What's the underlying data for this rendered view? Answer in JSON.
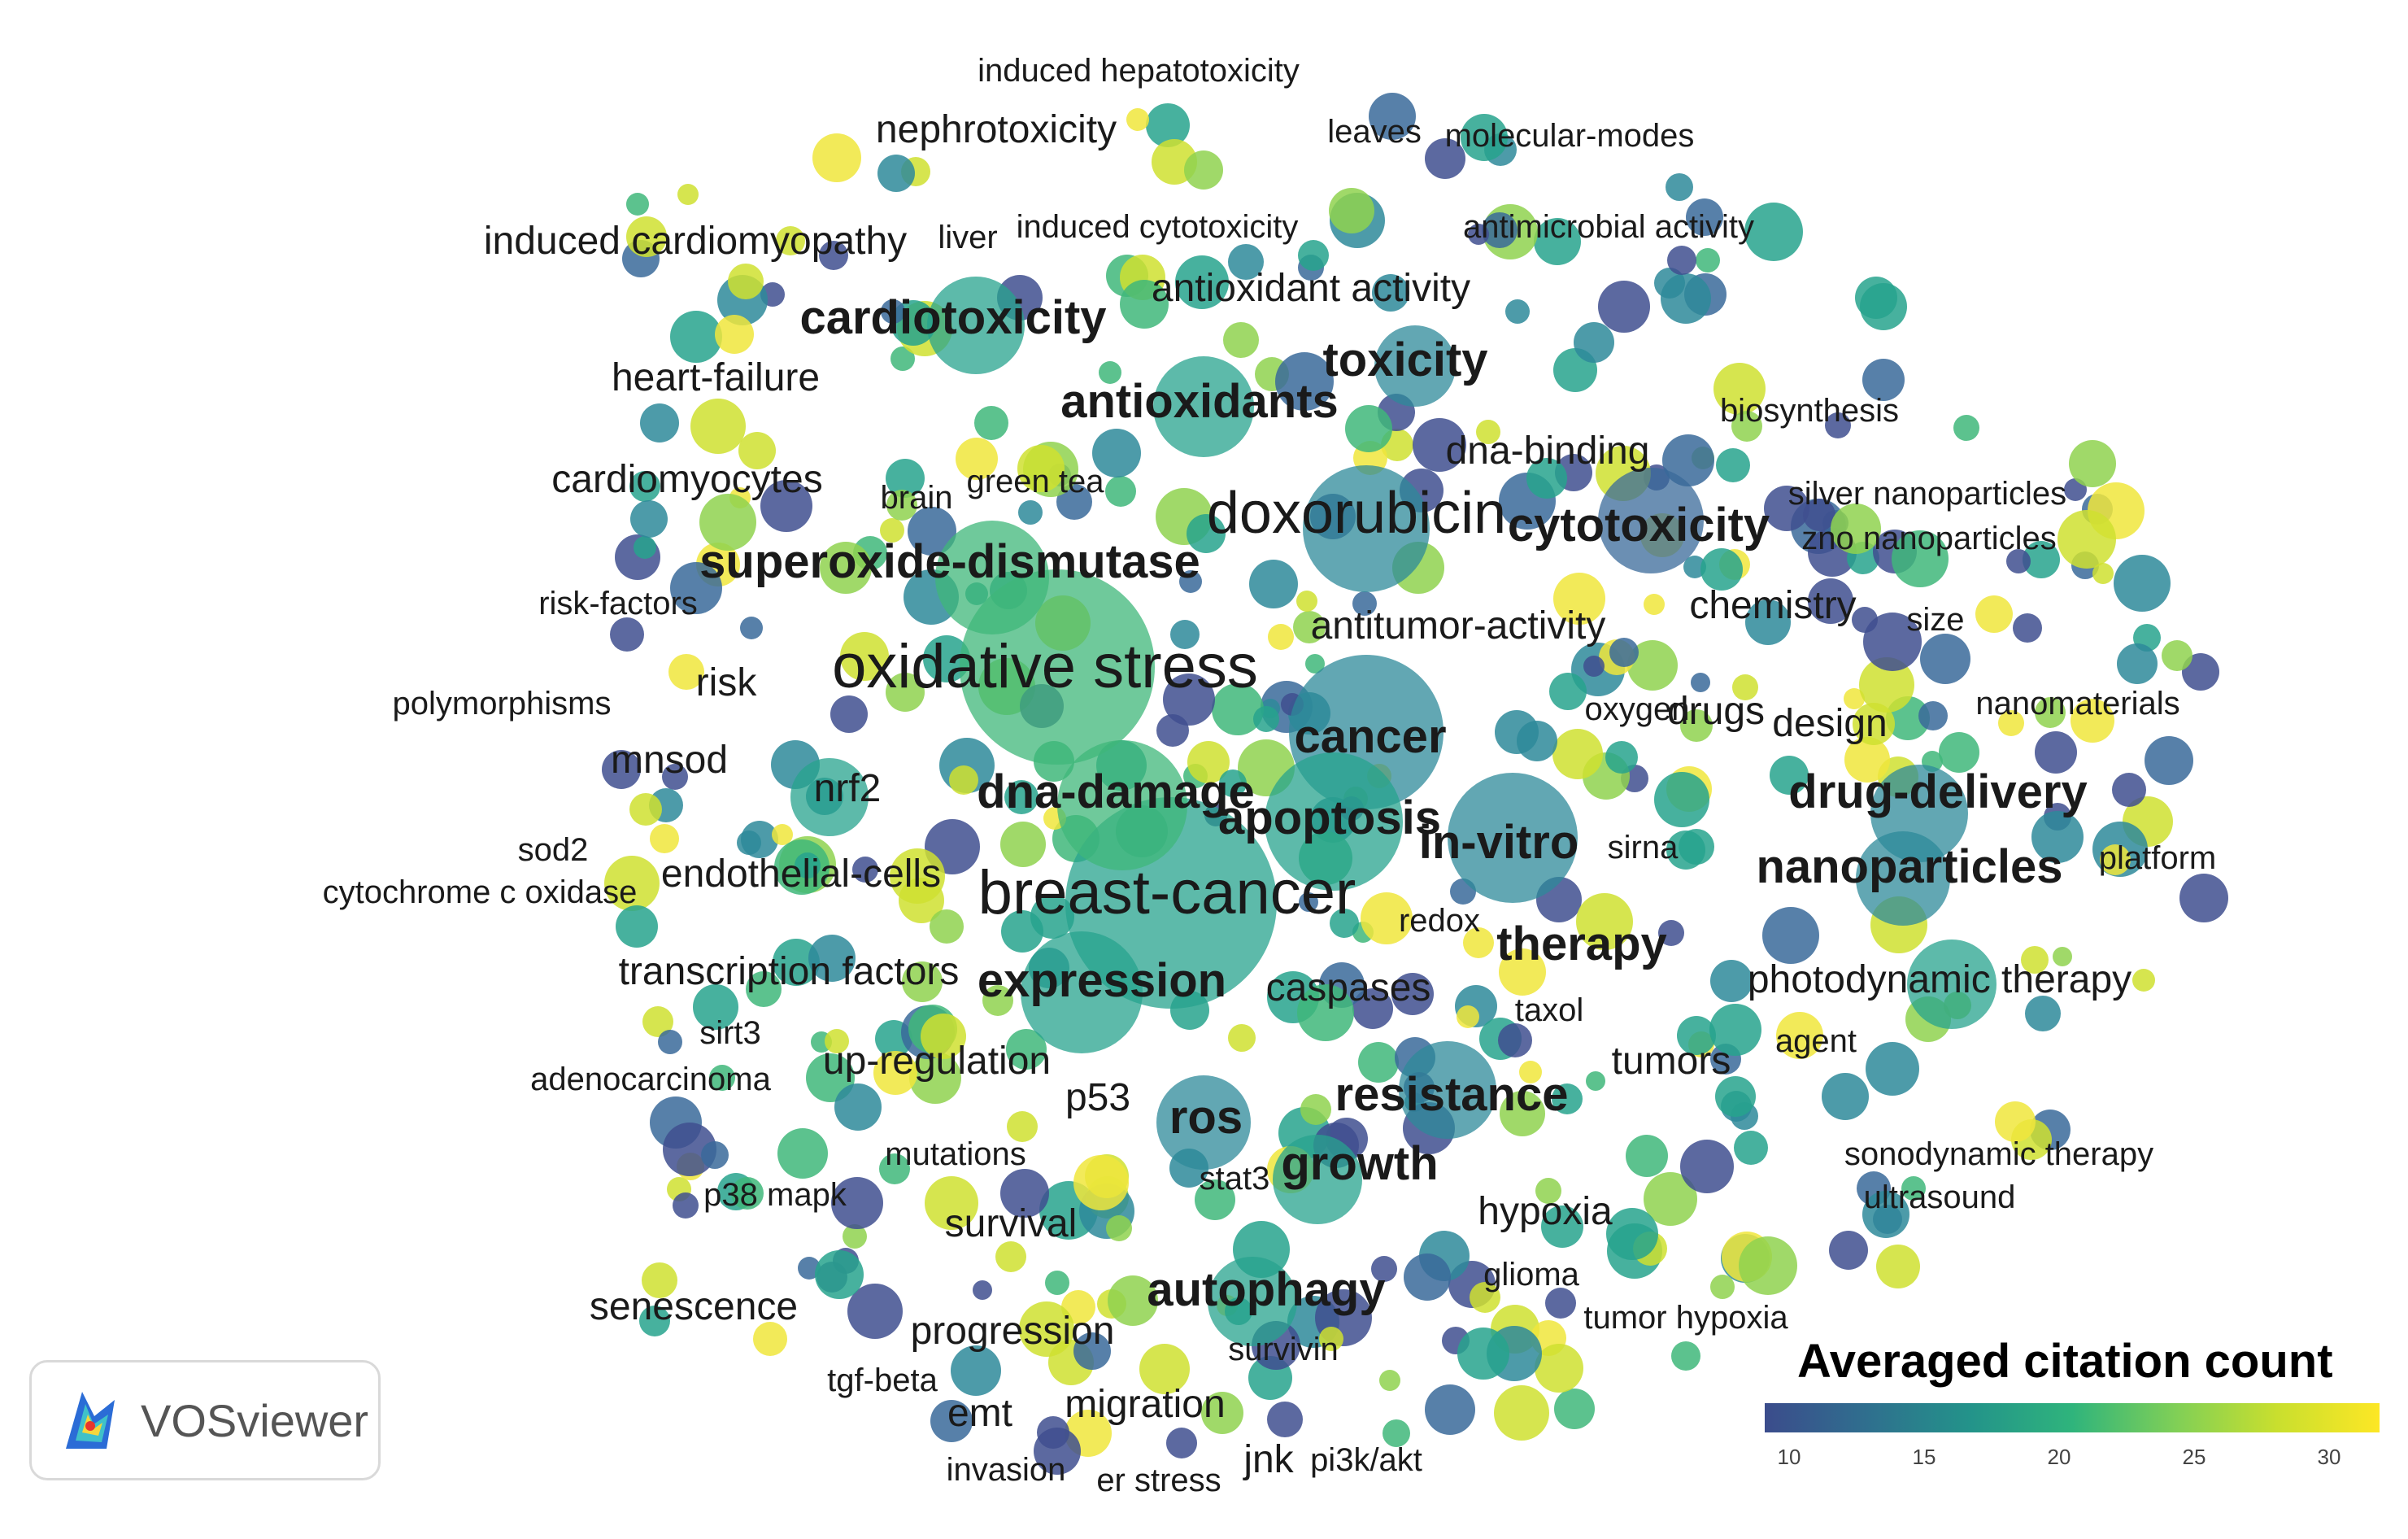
{
  "labels": [
    {
      "text": "induced hepatotoxicity",
      "size": "s"
    },
    {
      "text": "nephrotoxicity",
      "size": "m"
    },
    {
      "text": "leaves",
      "size": "s"
    },
    {
      "text": "molecular-modes",
      "size": "s"
    },
    {
      "text": "induced cardiomyopathy",
      "size": "m"
    },
    {
      "text": "liver",
      "size": "s"
    },
    {
      "text": "induced cytotoxicity",
      "size": "s"
    },
    {
      "text": "antimicrobial activity",
      "size": "s"
    },
    {
      "text": "antioxidant activity",
      "size": "m"
    },
    {
      "text": "cardiotoxicity",
      "size": "l"
    },
    {
      "text": "heart-failure",
      "size": "m"
    },
    {
      "text": "toxicity",
      "size": "l"
    },
    {
      "text": "antioxidants",
      "size": "l"
    },
    {
      "text": "biosynthesis",
      "size": "s"
    },
    {
      "text": "dna-binding",
      "size": "m"
    },
    {
      "text": "cardiomyocytes",
      "size": "m"
    },
    {
      "text": "brain",
      "size": "s"
    },
    {
      "text": "green tea",
      "size": "s"
    },
    {
      "text": "silver nanoparticles",
      "size": "s"
    },
    {
      "text": "doxorubicin",
      "size": "xl"
    },
    {
      "text": "cytotoxicity",
      "size": "l"
    },
    {
      "text": "zno nanoparticles",
      "size": "s"
    },
    {
      "text": "superoxide-dismutase",
      "size": "l"
    },
    {
      "text": "risk-factors",
      "size": "s"
    },
    {
      "text": "chemistry",
      "size": "m"
    },
    {
      "text": "size",
      "size": "s"
    },
    {
      "text": "antitumor-activity",
      "size": "m"
    },
    {
      "text": "oxidative stress",
      "size": "xxl"
    },
    {
      "text": "risk",
      "size": "m"
    },
    {
      "text": "polymorphisms",
      "size": "s"
    },
    {
      "text": "oxygen",
      "size": "s"
    },
    {
      "text": "drugs",
      "size": "m"
    },
    {
      "text": "design",
      "size": "m"
    },
    {
      "text": "nanomaterials",
      "size": "s"
    },
    {
      "text": "cancer",
      "size": "l"
    },
    {
      "text": "mnsod",
      "size": "m"
    },
    {
      "text": "nrf2",
      "size": "m"
    },
    {
      "text": "dna-damage",
      "size": "l"
    },
    {
      "text": "drug-delivery",
      "size": "l"
    },
    {
      "text": "apoptosis",
      "size": "l"
    },
    {
      "text": "in-vitro",
      "size": "l"
    },
    {
      "text": "sirna",
      "size": "s"
    },
    {
      "text": "sod2",
      "size": "s"
    },
    {
      "text": "nanoparticles",
      "size": "l"
    },
    {
      "text": "platform",
      "size": "s"
    },
    {
      "text": "endothelial-cells",
      "size": "m"
    },
    {
      "text": "cytochrome c oxidase",
      "size": "s"
    },
    {
      "text": "breast-cancer",
      "size": "xxl"
    },
    {
      "text": "redox",
      "size": "s"
    },
    {
      "text": "therapy",
      "size": "l"
    },
    {
      "text": "transcription factors",
      "size": "m"
    },
    {
      "text": "expression",
      "size": "l"
    },
    {
      "text": "photodynamic therapy",
      "size": "m"
    },
    {
      "text": "caspases",
      "size": "m"
    },
    {
      "text": "taxol",
      "size": "s"
    },
    {
      "text": "sirt3",
      "size": "s"
    },
    {
      "text": "agent",
      "size": "s"
    },
    {
      "text": "adenocarcinoma",
      "size": "s"
    },
    {
      "text": "up-regulation",
      "size": "m"
    },
    {
      "text": "tumors",
      "size": "m"
    },
    {
      "text": "p53",
      "size": "m"
    },
    {
      "text": "resistance",
      "size": "l"
    },
    {
      "text": "ros",
      "size": "l"
    },
    {
      "text": "mutations",
      "size": "s"
    },
    {
      "text": "sonodynamic therapy",
      "size": "s"
    },
    {
      "text": "growth",
      "size": "l"
    },
    {
      "text": "stat3",
      "size": "s"
    },
    {
      "text": "p38 mapk",
      "size": "s"
    },
    {
      "text": "hypoxia",
      "size": "m"
    },
    {
      "text": "ultrasound",
      "size": "s"
    },
    {
      "text": "survival",
      "size": "m"
    },
    {
      "text": "autophagy",
      "size": "l"
    },
    {
      "text": "glioma",
      "size": "s"
    },
    {
      "text": "senescence",
      "size": "m"
    },
    {
      "text": "tumor hypoxia",
      "size": "s"
    },
    {
      "text": "progression",
      "size": "m"
    },
    {
      "text": "survivin",
      "size": "s"
    },
    {
      "text": "tgf-beta",
      "size": "s"
    },
    {
      "text": "emt",
      "size": "m"
    },
    {
      "text": "migration",
      "size": "m"
    },
    {
      "text": "invasion",
      "size": "s"
    },
    {
      "text": "jnk",
      "size": "m"
    },
    {
      "text": "pi3k/akt",
      "size": "s"
    },
    {
      "text": "er stress",
      "size": "s"
    }
  ],
  "legend": {
    "title": "Averaged citation count",
    "ticks": [
      "10",
      "15",
      "20",
      "25",
      "30"
    ],
    "colors": [
      "#3b4c8c",
      "#23938a",
      "#7fcf57",
      "#fde725"
    ]
  },
  "logo": {
    "text": "VOSviewer",
    "icon": "vosviewer-logo-icon"
  }
}
